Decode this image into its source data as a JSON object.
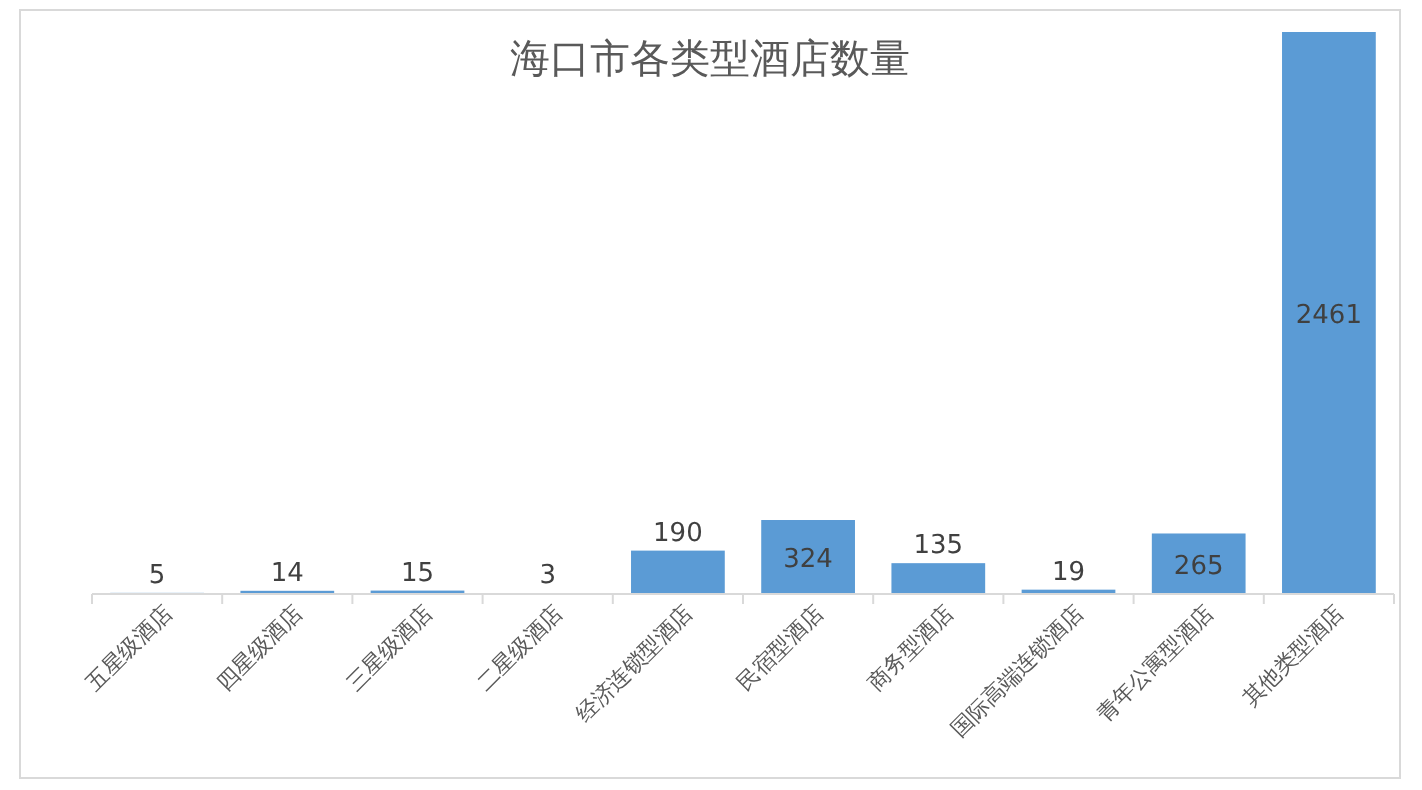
{
  "chart_data": {
    "type": "bar",
    "title": "海口市各类型酒店数量",
    "categories": [
      "五星级酒店",
      "四星级酒店",
      "三星级酒店",
      "二星级酒店",
      "经济连锁型酒店",
      "民宿型酒店",
      "商务型酒店",
      "国际高端连锁酒店",
      "青年公寓型酒店",
      "其他类型酒店"
    ],
    "values": [
      5,
      14,
      15,
      3,
      190,
      324,
      135,
      19,
      265,
      2461
    ],
    "color": "#5b9bd5",
    "data_labels": true
  }
}
